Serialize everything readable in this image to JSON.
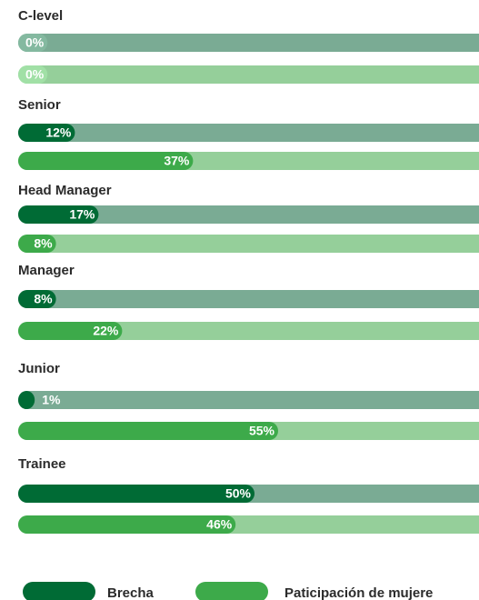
{
  "chart_data": {
    "type": "bar",
    "categories": [
      "C-level",
      "Senior",
      "Head Manager",
      "Manager",
      "Junior",
      "Trainee"
    ],
    "series": [
      {
        "name": "Brecha",
        "color": "#006b35",
        "track_color": "#7aab94",
        "values": [
          0,
          12,
          17,
          8,
          1,
          50
        ],
        "value_labels": [
          "0%",
          "12%",
          "17%",
          "8%",
          "1%",
          "50%"
        ]
      },
      {
        "name": "Paticipación de mujere",
        "color": "#3daa4a",
        "track_color": "#95cf9a",
        "values": [
          0,
          37,
          8,
          22,
          55,
          46
        ],
        "value_labels": [
          "0%",
          "37%",
          "8%",
          "22%",
          "55%",
          "46%"
        ]
      }
    ]
  }
}
